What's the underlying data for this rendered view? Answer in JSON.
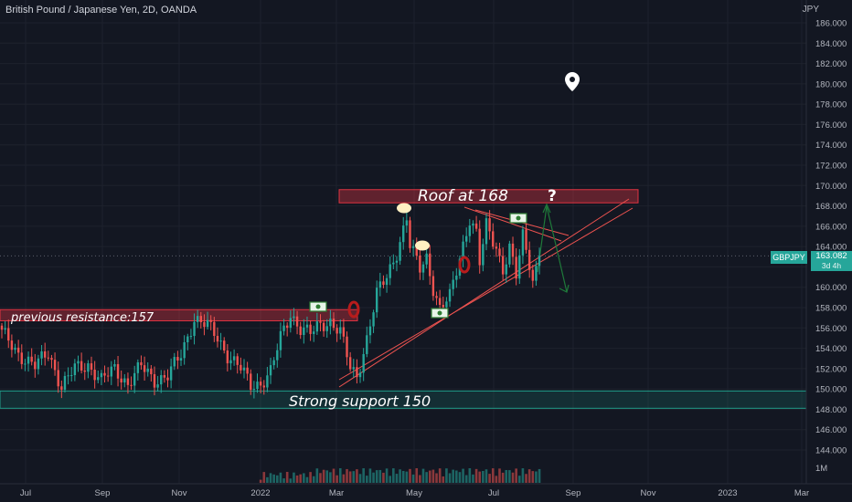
{
  "symbol_title": "British Pound / Japanese Yen, 2D, OANDA",
  "currency": "JPY",
  "price_badge": {
    "ticker": "GBPJPY",
    "price": "163.082",
    "countdown": "3d 4h",
    "value": 163.082
  },
  "volume_axis_label": "1M",
  "annotations": {
    "roof": "Roof at 168",
    "question": "?",
    "previous_resistance": "previous resistance:157",
    "support": "Strong support 150"
  },
  "colors": {
    "background": "#131722",
    "up": "#26a69a",
    "down": "#ef5350",
    "zone_red": "#f23645",
    "zone_green": "#22ab94",
    "text": "#b2b5be"
  },
  "chart_data": {
    "type": "candlestick",
    "title": "British Pound / Japanese Yen, 2D, OANDA",
    "ylim": [
      142.5,
      188
    ],
    "y_ticks": [
      144,
      146,
      148,
      150,
      152,
      154,
      156,
      158,
      160,
      162,
      164,
      166,
      168,
      170,
      172,
      174,
      176,
      178,
      180,
      182,
      184,
      186
    ],
    "x_ticks": [
      "Jul",
      "Sep",
      "Nov",
      "2022",
      "Mar",
      "May",
      "Jul",
      "Sep",
      "Nov",
      "2023",
      "Mar"
    ],
    "anchors": [
      [
        0,
        155.5
      ],
      [
        5,
        153.5
      ],
      [
        10,
        152.2
      ],
      [
        14,
        153.6
      ],
      [
        18,
        150.2
      ],
      [
        22,
        152.0
      ],
      [
        26,
        152.4
      ],
      [
        30,
        150.8
      ],
      [
        34,
        152.0
      ],
      [
        38,
        150.5
      ],
      [
        42,
        152.2
      ],
      [
        46,
        150.9
      ],
      [
        50,
        151.3
      ],
      [
        54,
        153.3
      ],
      [
        58,
        157.0
      ],
      [
        62,
        156.2
      ],
      [
        65,
        155.0
      ],
      [
        68,
        153.4
      ],
      [
        72,
        152.0
      ],
      [
        75,
        150.3
      ],
      [
        78,
        150.6
      ],
      [
        81,
        151.7
      ],
      [
        84,
        155.0
      ],
      [
        87,
        157.4
      ],
      [
        90,
        156.0
      ],
      [
        93,
        155.4
      ],
      [
        96,
        156.3
      ],
      [
        99,
        156.7
      ],
      [
        102,
        155.6
      ],
      [
        105,
        152.0
      ],
      [
        107,
        151.2
      ],
      [
        110,
        155.0
      ],
      [
        113,
        159.3
      ],
      [
        116,
        161.0
      ],
      [
        119,
        163.5
      ],
      [
        122,
        166.8
      ],
      [
        123,
        164.0
      ],
      [
        126,
        161.8
      ],
      [
        128,
        163.0
      ],
      [
        130,
        160.0
      ],
      [
        132,
        157.8
      ],
      [
        135,
        159.0
      ],
      [
        138,
        163.0
      ],
      [
        141,
        166.8
      ],
      [
        143,
        165.2
      ],
      [
        144,
        162.3
      ],
      [
        146,
        166.0
      ],
      [
        149,
        164.0
      ],
      [
        151,
        161.8
      ],
      [
        153,
        163.8
      ],
      [
        155,
        161.0
      ],
      [
        157,
        165.0
      ],
      [
        159,
        162.5
      ],
      [
        160,
        160.8
      ],
      [
        162,
        163.082
      ]
    ],
    "volume_ylim": [
      0,
      1
    ],
    "zones": [
      {
        "label": "Roof at 168",
        "from": 168.3,
        "to": 169.6
      },
      {
        "label": "previous resistance:157",
        "from": 156.7,
        "to": 157.8
      },
      {
        "label": "Strong support 150",
        "from": 148.1,
        "to": 149.8
      }
    ],
    "grid": true,
    "legend": "none"
  }
}
